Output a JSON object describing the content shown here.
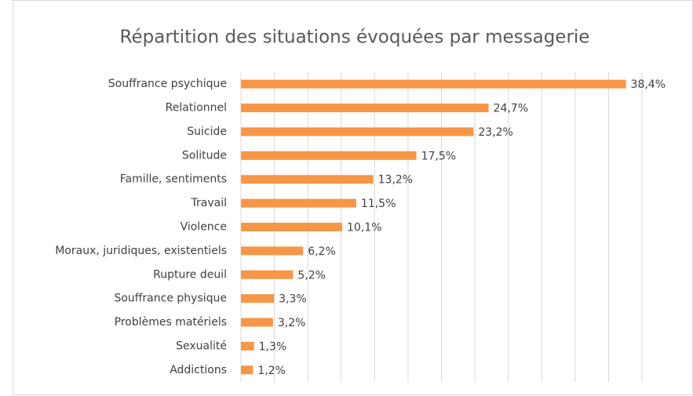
{
  "chart_data": {
    "type": "bar",
    "orientation": "horizontal",
    "title": "Répartition des situations évoquées par messagerie",
    "categories": [
      "Souffrance psychique",
      "Relationnel",
      "Suicide",
      "Solitude",
      "Famille, sentiments",
      "Travail",
      "Violence",
      "Moraux, juridiques, existentiels",
      "Rupture deuil",
      "Souffrance physique",
      "Problèmes matériels",
      "Sexualité",
      "Addictions"
    ],
    "values": [
      38.4,
      24.7,
      23.2,
      17.5,
      13.2,
      11.5,
      10.1,
      6.2,
      5.2,
      3.3,
      3.2,
      1.3,
      1.2
    ],
    "value_labels": [
      "38,4%",
      "24,7%",
      "23,2%",
      "17,5%",
      "13,2%",
      "11,5%",
      "10,1%",
      "6,2%",
      "5,2%",
      "3,3%",
      "3,2%",
      "1,3%",
      "1,2%"
    ],
    "color": "#f79646",
    "xlim": [
      0,
      40
    ],
    "xticks": [
      0,
      3.33,
      6.67,
      10,
      13.33,
      16.67,
      20,
      23.33,
      26.67,
      30,
      33.33,
      36.67,
      40
    ],
    "grid": true
  }
}
